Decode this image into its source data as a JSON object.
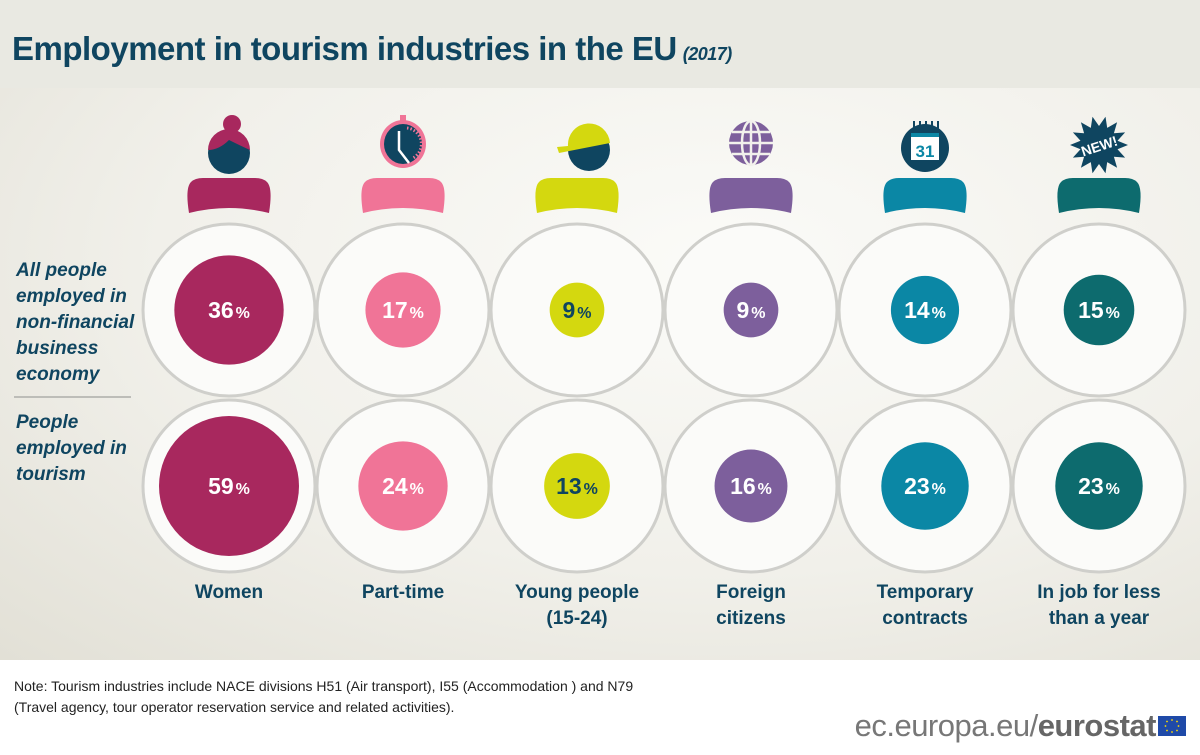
{
  "title": {
    "text": "Employment in tourism industries in the EU",
    "year": "(2017)"
  },
  "row_labels": [
    "All people employed in non-financial business economy",
    "People employed in tourism"
  ],
  "chart_data": {
    "type": "bubble-infographic",
    "categories": [
      "Women",
      "Part-time",
      "Young people (15-24)",
      "Foreign citizens",
      "Temporary contracts",
      "In job for less than a year"
    ],
    "series": [
      {
        "name": "All people employed in non-financial business economy",
        "values": [
          36,
          17,
          9,
          9,
          14,
          15
        ]
      },
      {
        "name": "People employed in tourism",
        "values": [
          59,
          24,
          13,
          16,
          23,
          23
        ]
      }
    ],
    "unit": "%",
    "colors": [
      "#a8285e",
      "#f07497",
      "#d4d80f",
      "#7d5f9c",
      "#0b87a5",
      "#0d6b6e"
    ],
    "icons": [
      "woman-icon",
      "stopwatch-icon",
      "cap-icon",
      "globe-icon",
      "calendar-icon",
      "new-badge-icon"
    ],
    "icon_texts": {
      "calendar": "31",
      "badge": "NEW!"
    }
  },
  "column_labels": [
    [
      "Women"
    ],
    [
      "Part-time"
    ],
    [
      "Young people",
      "(15-24)"
    ],
    [
      "Foreign",
      "citizens"
    ],
    [
      "Temporary",
      "contracts"
    ],
    [
      "In job for less",
      "than a year"
    ]
  ],
  "note": [
    "Note: Tourism industries include NACE divisions H51 (Air transport), I55 (Accommodation ) and N79",
    "(Travel agency, tour operator reservation service and related activities)."
  ],
  "brand": {
    "prefix": "ec.europa.eu/",
    "name": "eurostat"
  }
}
